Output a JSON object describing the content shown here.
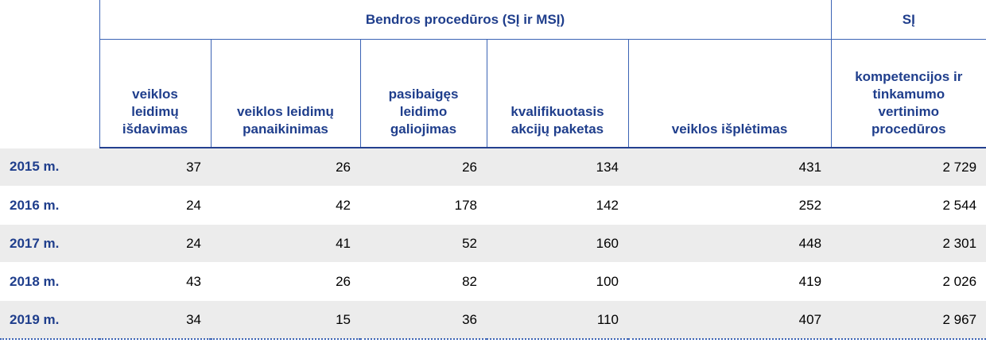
{
  "table": {
    "group_headers": [
      "Bendros procedūros (SĮ ir MSĮ)",
      "SĮ"
    ],
    "columns": [
      "veiklos leidimų išdavimas",
      "veiklos leidimų panaikinimas",
      "pasibaigęs leidimo galiojimas",
      "kvalifikuotasis akcijų paketas",
      "veiklos išplėtimas",
      "kompetencijos ir tinkamumo vertinimo procedūros"
    ],
    "rows": [
      [
        "2015 m.",
        37,
        26,
        26,
        134,
        431,
        "2 729"
      ],
      [
        "2016 m.",
        24,
        42,
        178,
        142,
        252,
        "2 544"
      ],
      [
        "2017 m.",
        24,
        41,
        52,
        160,
        448,
        "2 301"
      ],
      [
        "2018 m.",
        43,
        26,
        82,
        100,
        419,
        "2 026"
      ],
      [
        "2019 m.",
        34,
        15,
        36,
        110,
        407,
        "2 967"
      ]
    ]
  }
}
